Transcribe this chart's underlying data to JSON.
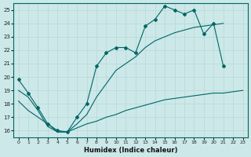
{
  "xlabel": "Humidex (Indice chaleur)",
  "bg_color": "#cce8e8",
  "grid_color": "#b8d8d8",
  "line_color": "#006666",
  "xlim": [
    -0.5,
    23.5
  ],
  "ylim": [
    15.5,
    25.5
  ],
  "xticks": [
    0,
    1,
    2,
    3,
    4,
    5,
    6,
    7,
    8,
    9,
    10,
    11,
    12,
    13,
    14,
    15,
    16,
    17,
    18,
    19,
    20,
    21,
    22,
    23
  ],
  "yticks": [
    16,
    17,
    18,
    19,
    20,
    21,
    22,
    23,
    24,
    25
  ],
  "series_top_x": [
    0,
    1,
    2,
    3,
    4,
    5,
    6,
    7,
    8,
    9,
    10,
    11,
    12,
    13,
    14,
    15,
    16,
    17,
    18,
    19,
    20,
    21
  ],
  "series_top_y": [
    19.8,
    18.8,
    17.7,
    16.5,
    16.0,
    15.9,
    17.0,
    18.0,
    20.8,
    21.8,
    22.2,
    22.2,
    21.8,
    23.8,
    24.3,
    25.3,
    25.0,
    24.7,
    25.0,
    23.2,
    24.0,
    20.8
  ],
  "series_mid_x": [
    0,
    1,
    2,
    3,
    4,
    5,
    6,
    7,
    8,
    9,
    10,
    11,
    12,
    13,
    14,
    15,
    16,
    17,
    18,
    19,
    20,
    21
  ],
  "series_mid_y": [
    19.0,
    18.5,
    17.5,
    16.3,
    15.9,
    15.9,
    16.5,
    17.2,
    18.5,
    19.5,
    20.5,
    21.0,
    21.5,
    22.2,
    22.7,
    23.0,
    23.3,
    23.5,
    23.7,
    23.8,
    23.9,
    24.0
  ],
  "series_bot_x": [
    0,
    1,
    2,
    3,
    4,
    5,
    6,
    7,
    8,
    9,
    10,
    11,
    12,
    13,
    14,
    15,
    16,
    17,
    18,
    19,
    20,
    21,
    22,
    23
  ],
  "series_bot_y": [
    18.2,
    17.5,
    17.0,
    16.5,
    15.9,
    15.9,
    16.2,
    16.5,
    16.7,
    17.0,
    17.2,
    17.5,
    17.7,
    17.9,
    18.1,
    18.3,
    18.4,
    18.5,
    18.6,
    18.7,
    18.8,
    18.8,
    18.9,
    19.0
  ]
}
